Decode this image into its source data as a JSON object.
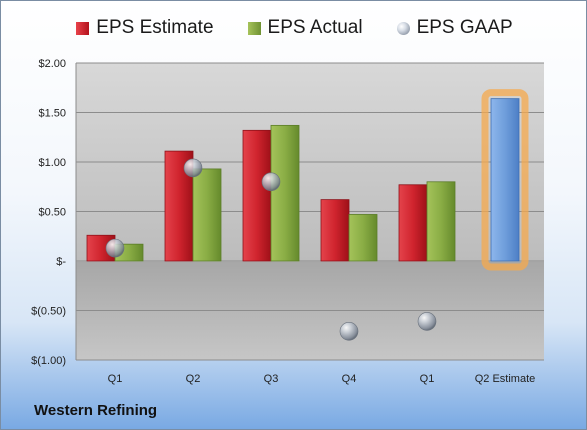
{
  "chart_data": {
    "type": "bar",
    "categories": [
      "Q1",
      "Q2",
      "Q3",
      "Q4",
      "Q1",
      "Q2 Estimate"
    ],
    "series": [
      {
        "name": "EPS Estimate",
        "type": "bar",
        "values": [
          0.26,
          1.11,
          1.32,
          0.62,
          0.77,
          null
        ],
        "color": "#c8202b"
      },
      {
        "name": "EPS Actual",
        "type": "bar",
        "values": [
          0.17,
          0.93,
          1.37,
          0.47,
          0.8,
          null
        ],
        "color": "#8aad45"
      },
      {
        "name": "EPS GAAP",
        "type": "scatter",
        "values": [
          0.13,
          0.94,
          0.8,
          -0.71,
          -0.61,
          null
        ],
        "color": "#a9b2bf"
      },
      {
        "name": "",
        "type": "bar",
        "values": [
          null,
          null,
          null,
          null,
          null,
          1.64
        ],
        "color": "#6f9edb"
      }
    ],
    "ylim": [
      -1.0,
      2.0
    ],
    "y_ticks": [
      2.0,
      1.5,
      1.0,
      0.5,
      0.0,
      -0.5,
      -1.0
    ],
    "y_tick_labels": [
      "$2.00",
      "$1.50",
      "$1.00",
      "$0.50",
      "$-",
      "$(0.50)",
      "$(1.00)"
    ],
    "grid": true,
    "legend_position": "top",
    "highlight_color": "#f5a94e",
    "company": "Western Refining"
  }
}
